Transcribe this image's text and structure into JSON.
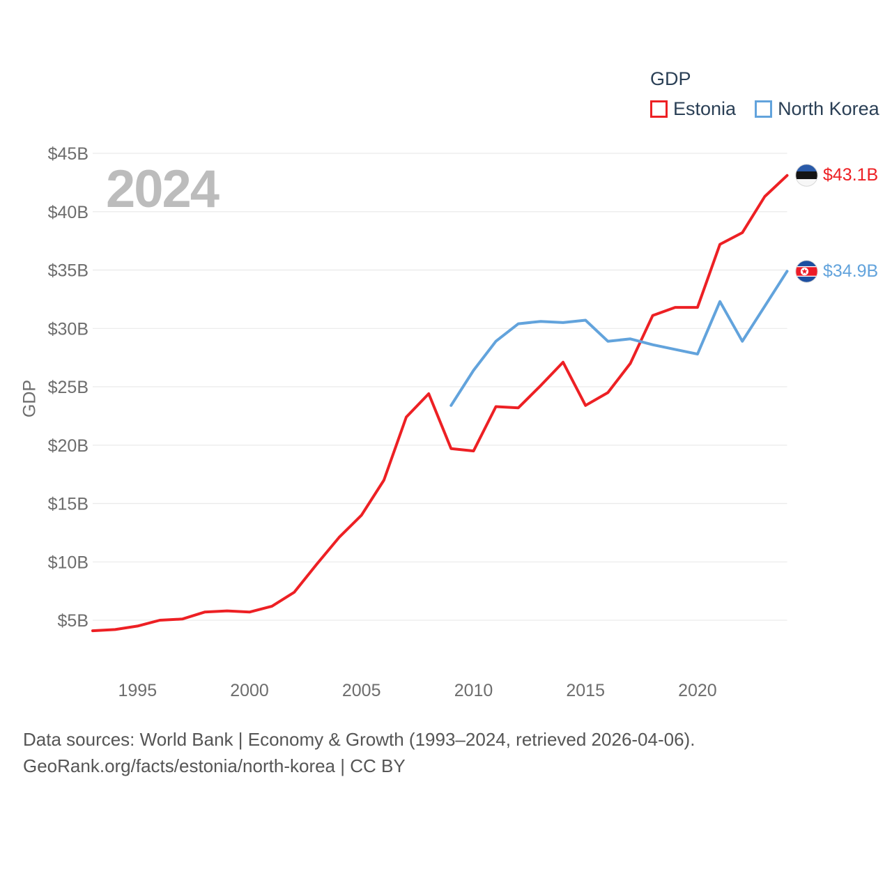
{
  "watermark": "2024",
  "legend": {
    "title": "GDP",
    "items": [
      {
        "label": "Estonia",
        "color": "#ed2024"
      },
      {
        "label": "North Korea",
        "color": "#62a3dc"
      }
    ]
  },
  "axis": {
    "y_label": "GDP"
  },
  "end_labels": [
    {
      "series": "Estonia",
      "value": "$43.1B",
      "flag": "estonia-flag-icon"
    },
    {
      "series": "North Korea",
      "value": "$34.9B",
      "flag": "north-korea-flag-icon"
    }
  ],
  "footer": {
    "line1": "Data sources: World Bank | Economy & Growth (1993–2024, retrieved 2026-04-06).",
    "line2": "GeoRank.org/facts/estonia/north-korea | CC BY"
  },
  "chart_data": {
    "type": "line",
    "title": "GDP",
    "ylabel": "GDP",
    "grid": true,
    "legend_position": "top-right",
    "xlim": [
      1993,
      2024
    ],
    "ylim": [
      5,
      45
    ],
    "x_ticks": [
      1995,
      2000,
      2005,
      2010,
      2015,
      2020
    ],
    "y_ticks": [
      {
        "value": 5,
        "label": "$5B"
      },
      {
        "value": 10,
        "label": "$10B"
      },
      {
        "value": 15,
        "label": "$15B"
      },
      {
        "value": 20,
        "label": "$20B"
      },
      {
        "value": 25,
        "label": "$25B"
      },
      {
        "value": 30,
        "label": "$30B"
      },
      {
        "value": 35,
        "label": "$35B"
      },
      {
        "value": 40,
        "label": "$40B"
      },
      {
        "value": 45,
        "label": "$45B"
      }
    ],
    "series": [
      {
        "name": "Estonia",
        "color": "#ed2024",
        "x": [
          1993,
          1994,
          1995,
          1996,
          1997,
          1998,
          1999,
          2000,
          2001,
          2002,
          2003,
          2004,
          2005,
          2006,
          2007,
          2008,
          2009,
          2010,
          2011,
          2012,
          2013,
          2014,
          2015,
          2016,
          2017,
          2018,
          2019,
          2020,
          2021,
          2022,
          2023,
          2024
        ],
        "values": [
          4.1,
          4.2,
          4.5,
          5.0,
          5.1,
          5.7,
          5.8,
          5.7,
          6.2,
          7.4,
          9.8,
          12.1,
          14.0,
          17.0,
          22.4,
          24.4,
          19.7,
          19.5,
          23.3,
          23.2,
          25.1,
          27.1,
          23.4,
          24.5,
          27.0,
          31.1,
          31.8,
          31.8,
          37.2,
          38.2,
          41.3,
          43.1
        ]
      },
      {
        "name": "North Korea",
        "color": "#62a3dc",
        "x": [
          2009,
          2010,
          2011,
          2012,
          2013,
          2014,
          2015,
          2016,
          2017,
          2018,
          2019,
          2020,
          2021,
          2022,
          2023,
          2024
        ],
        "values": [
          23.4,
          26.4,
          28.9,
          30.4,
          30.6,
          30.5,
          30.7,
          28.9,
          29.1,
          28.6,
          28.2,
          27.8,
          32.3,
          28.9,
          31.9,
          34.9
        ]
      }
    ]
  }
}
